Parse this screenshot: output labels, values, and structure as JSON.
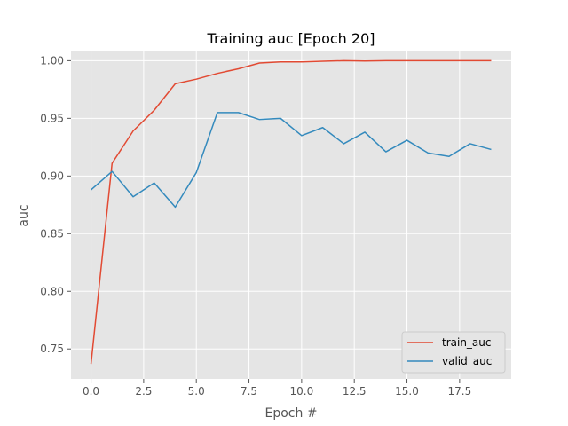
{
  "chart_data": {
    "type": "line",
    "title": "Training auc [Epoch 20]",
    "xlabel": "Epoch #",
    "ylabel": "auc",
    "xlim": [
      -0.95,
      19.95
    ],
    "ylim": [
      0.724,
      1.008
    ],
    "xticks": [
      0.0,
      2.5,
      5.0,
      7.5,
      10.0,
      12.5,
      15.0,
      17.5
    ],
    "xtick_labels": [
      "0.0",
      "2.5",
      "5.0",
      "7.5",
      "10.0",
      "12.5",
      "15.0",
      "17.5"
    ],
    "yticks": [
      0.75,
      0.8,
      0.85,
      0.9,
      0.95,
      1.0
    ],
    "ytick_labels": [
      "0.75",
      "0.80",
      "0.85",
      "0.90",
      "0.95",
      "1.00"
    ],
    "grid": true,
    "legend_position": "lower-right",
    "x": [
      0,
      1,
      2,
      3,
      4,
      5,
      6,
      7,
      8,
      9,
      10,
      11,
      12,
      13,
      14,
      15,
      16,
      17,
      18,
      19
    ],
    "series": [
      {
        "name": "train_auc",
        "color": "#E24A33",
        "values": [
          0.737,
          0.911,
          0.939,
          0.957,
          0.98,
          0.984,
          0.989,
          0.993,
          0.998,
          0.999,
          0.999,
          0.9995,
          1.0,
          0.9997,
          1.0,
          1.0,
          1.0,
          1.0,
          1.0,
          1.0
        ]
      },
      {
        "name": "valid_auc",
        "color": "#348ABD",
        "values": [
          0.888,
          0.904,
          0.882,
          0.894,
          0.873,
          0.903,
          0.955,
          0.955,
          0.949,
          0.95,
          0.935,
          0.942,
          0.928,
          0.938,
          0.921,
          0.931,
          0.92,
          0.917,
          0.928,
          0.923
        ]
      }
    ]
  }
}
